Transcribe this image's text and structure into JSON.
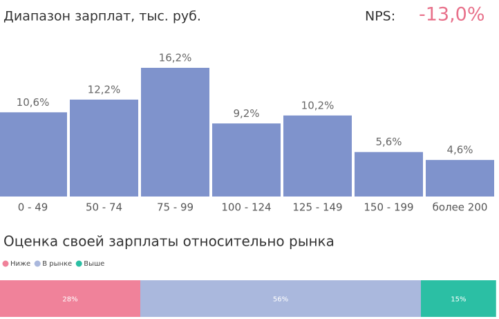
{
  "nps": {
    "label": "NPS:",
    "value": "-13,0%"
  },
  "chart_data": [
    {
      "type": "bar",
      "title": "Диапазон зарплат, тыс. руб.",
      "categories": [
        "0 - 49",
        "50 - 74",
        "75 - 99",
        "100 - 124",
        "125 - 149",
        "150 - 199",
        "более 200"
      ],
      "values": [
        10.6,
        12.2,
        16.2,
        9.2,
        10.2,
        5.6,
        4.6
      ],
      "value_labels": [
        "10,6%",
        "12,2%",
        "16,2%",
        "9,2%",
        "10,2%",
        "5,6%",
        "4,6%"
      ],
      "color": "#7f93cc"
    },
    {
      "type": "stacked_bar",
      "title": "Оценка своей зарплаты относительно рынка",
      "series": [
        {
          "name": "Ниже",
          "color": "#f0829a",
          "values": [
            28
          ],
          "value_labels": [
            "28%"
          ]
        },
        {
          "name": "В рынке",
          "color": "#aab8dd",
          "values": [
            56
          ],
          "value_labels": [
            "56%"
          ]
        },
        {
          "name": "Выше",
          "color": "#2bbfa4",
          "values": [
            15
          ],
          "value_labels": [
            "15%"
          ]
        }
      ]
    }
  ]
}
